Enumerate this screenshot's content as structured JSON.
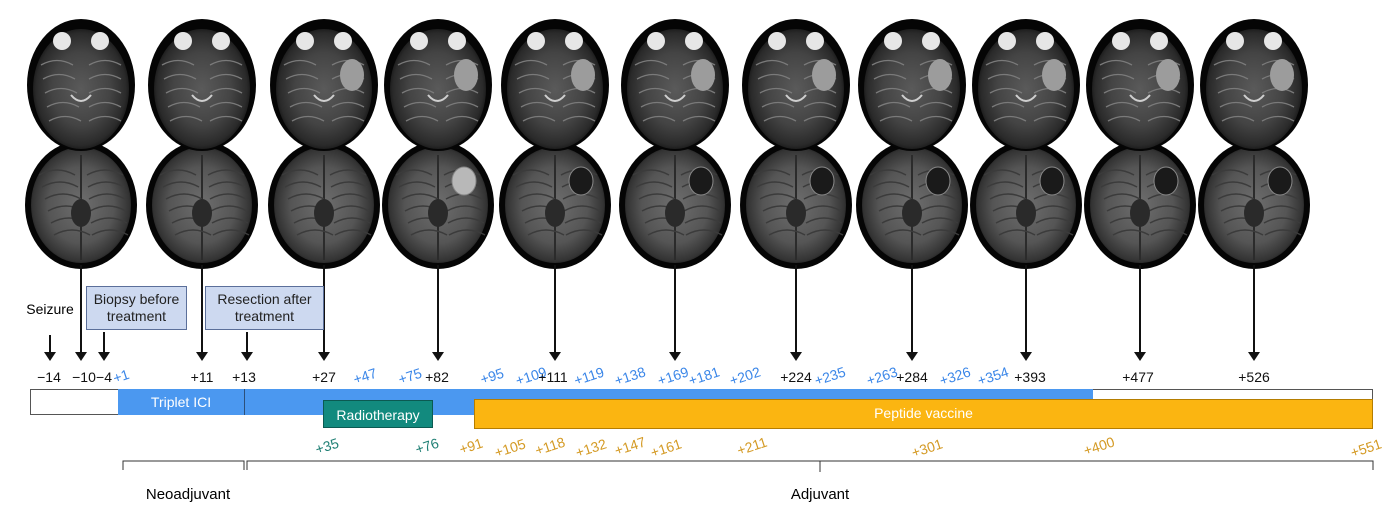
{
  "colors": {
    "ici": "#4b98f0",
    "radiotherapy": "#128a7e",
    "vaccine": "#fbb511",
    "black": "#111111",
    "blue_label": "#3a86e8",
    "teal_label": "#1f7f74",
    "orange_label": "#d49a24"
  },
  "events": {
    "seizure": "Seizure",
    "biopsy": "Biopsy before treatment",
    "resection": "Resection after treatment"
  },
  "bars": {
    "ici": "Triplet ICI",
    "radiotherapy": "Radiotherapy",
    "vaccine": "Peptide vaccine"
  },
  "phases": {
    "neoadjuvant": "Neoadjuvant",
    "adjuvant": "Adjuvant"
  },
  "top_labels": [
    {
      "text": "−14",
      "color": "black"
    },
    {
      "text": "−10",
      "color": "black"
    },
    {
      "text": "−4",
      "color": "black"
    },
    {
      "text": "+1",
      "color": "blue"
    },
    {
      "text": "+11",
      "color": "black"
    },
    {
      "text": "+13",
      "color": "black"
    },
    {
      "text": "+27",
      "color": "black"
    },
    {
      "text": "+47",
      "color": "blue"
    },
    {
      "text": "+75",
      "color": "blue"
    },
    {
      "text": "+82",
      "color": "black"
    },
    {
      "text": "+95",
      "color": "blue"
    },
    {
      "text": "+109",
      "color": "blue"
    },
    {
      "text": "+111",
      "color": "black"
    },
    {
      "text": "+119",
      "color": "blue"
    },
    {
      "text": "+138",
      "color": "blue"
    },
    {
      "text": "+169",
      "color": "blue"
    },
    {
      "text": "+181",
      "color": "blue"
    },
    {
      "text": "+202",
      "color": "blue"
    },
    {
      "text": "+224",
      "color": "black"
    },
    {
      "text": "+235",
      "color": "blue"
    },
    {
      "text": "+263",
      "color": "blue"
    },
    {
      "text": "+284",
      "color": "black"
    },
    {
      "text": "+326",
      "color": "blue"
    },
    {
      "text": "+354",
      "color": "blue"
    },
    {
      "text": "+393",
      "color": "black"
    },
    {
      "text": "+477",
      "color": "black"
    },
    {
      "text": "+526",
      "color": "black"
    }
  ],
  "radiotherapy_labels": [
    "+35",
    "+76"
  ],
  "vaccine_labels": [
    "+91",
    "+105",
    "+118",
    "+132",
    "+147",
    "+161",
    "+211",
    "+301",
    "+400",
    "+551"
  ],
  "mri_timepoints": [
    "−10",
    "+11",
    "+27",
    "+82",
    "+111",
    "+169",
    "+224",
    "+284",
    "+393",
    "+477",
    "+526"
  ]
}
